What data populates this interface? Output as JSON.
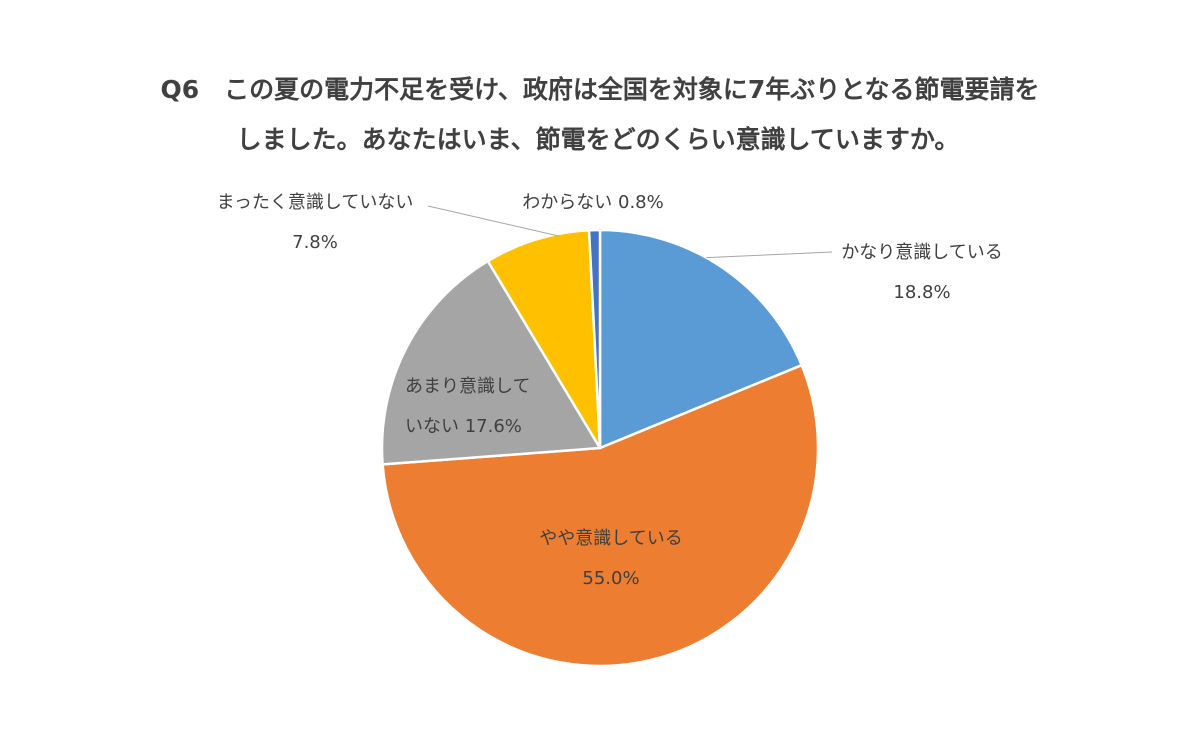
{
  "chart_data": {
    "type": "pie",
    "title": "Q6　この夏の電力不足を受け、政府は全国を対象に7年ぶりとなる節電要請をしました。あなたはいま、節電をどのくらい意識していますか。",
    "title_lines": [
      "Q6　この夏の電力不足を受け、政府は全国を対象に7年ぶりとなる節電要請を",
      "しました。あなたはいま、節電をどのくらい意識していますか。"
    ],
    "slices": [
      {
        "name": "かなり意識している",
        "value": 18.8,
        "value_label": "18.8%",
        "color": "#5b9bd5"
      },
      {
        "name": "やや意識している",
        "value": 55.0,
        "value_label": "55.0%",
        "color": "#ed7d31"
      },
      {
        "name": "あまり意識していない",
        "value": 17.6,
        "value_label": "17.6%",
        "color": "#a5a5a5"
      },
      {
        "name": "まったく意識していない",
        "value": 7.8,
        "value_label": "7.8%",
        "color": "#ffc000"
      },
      {
        "name": "わからない",
        "value": 0.8,
        "value_label": "0.8%",
        "color": "#4472c4"
      }
    ]
  }
}
